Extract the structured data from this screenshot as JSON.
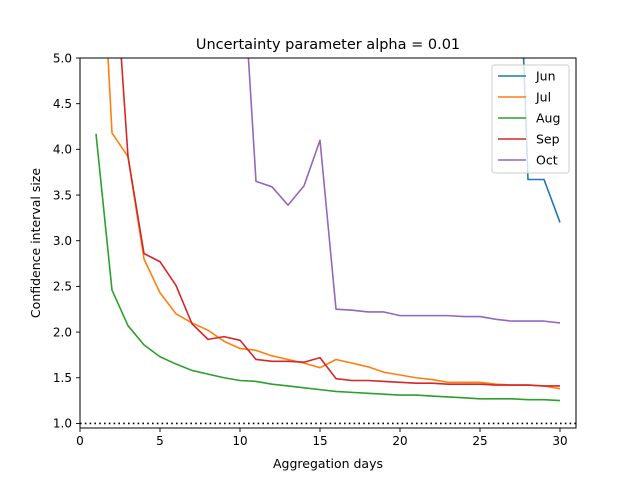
{
  "chart_data": {
    "type": "line",
    "title": "Uncertainty parameter alpha = 0.01",
    "xlabel": "Aggregation days",
    "ylabel": "Confidence interval size",
    "xlim": [
      0,
      31
    ],
    "ylim": [
      0.95,
      5.0
    ],
    "xticks": [
      0,
      5,
      10,
      15,
      20,
      25,
      30
    ],
    "yticks": [
      1.0,
      1.5,
      2.0,
      2.5,
      3.0,
      3.5,
      4.0,
      4.5,
      5.0
    ],
    "xtick_labels": [
      "0",
      "5",
      "10",
      "15",
      "20",
      "25",
      "30"
    ],
    "ytick_labels": [
      "1.0",
      "1.5",
      "2.0",
      "2.5",
      "3.0",
      "3.5",
      "4.0",
      "4.5",
      "5.0"
    ],
    "grid": false,
    "legend_position": "top-right",
    "reference_line": {
      "y": 1.0,
      "style": "dotted",
      "color": "#000000"
    },
    "series": [
      {
        "name": "Jun",
        "color": "#1f77b4",
        "x": [
          27,
          28,
          29,
          30
        ],
        "y": [
          8.5,
          3.67,
          3.67,
          3.2
        ]
      },
      {
        "name": "Jul",
        "color": "#ff7f0e",
        "x": [
          1,
          2,
          3,
          4,
          5,
          6,
          7,
          8,
          9,
          10,
          11,
          12,
          13,
          14,
          15,
          16,
          17,
          18,
          19,
          20,
          21,
          22,
          23,
          24,
          25,
          26,
          27,
          28,
          29,
          30
        ],
        "y": [
          7.5,
          4.18,
          3.92,
          2.8,
          2.43,
          2.2,
          2.1,
          2.02,
          1.9,
          1.82,
          1.8,
          1.74,
          1.7,
          1.66,
          1.61,
          1.7,
          1.66,
          1.62,
          1.56,
          1.53,
          1.5,
          1.48,
          1.45,
          1.45,
          1.45,
          1.43,
          1.42,
          1.42,
          1.41,
          1.38
        ]
      },
      {
        "name": "Aug",
        "color": "#2ca02c",
        "x": [
          1,
          2,
          3,
          4,
          5,
          6,
          7,
          8,
          9,
          10,
          11,
          12,
          13,
          14,
          15,
          16,
          17,
          18,
          19,
          20,
          21,
          22,
          23,
          24,
          25,
          26,
          27,
          28,
          29,
          30
        ],
        "y": [
          4.17,
          2.46,
          2.07,
          1.86,
          1.73,
          1.65,
          1.58,
          1.54,
          1.5,
          1.47,
          1.46,
          1.43,
          1.41,
          1.39,
          1.37,
          1.35,
          1.34,
          1.33,
          1.32,
          1.31,
          1.31,
          1.3,
          1.29,
          1.28,
          1.27,
          1.27,
          1.27,
          1.26,
          1.26,
          1.25
        ]
      },
      {
        "name": "Sep",
        "color": "#d62728",
        "x": [
          2,
          3,
          4,
          5,
          6,
          7,
          8,
          9,
          10,
          11,
          12,
          13,
          14,
          15,
          16,
          17,
          18,
          19,
          20,
          21,
          22,
          23,
          24,
          25,
          26,
          27,
          28,
          29,
          30
        ],
        "y": [
          6.5,
          3.92,
          2.86,
          2.77,
          2.51,
          2.09,
          1.92,
          1.95,
          1.91,
          1.7,
          1.68,
          1.68,
          1.67,
          1.72,
          1.49,
          1.47,
          1.47,
          1.46,
          1.45,
          1.44,
          1.44,
          1.43,
          1.43,
          1.43,
          1.42,
          1.42,
          1.42,
          1.41,
          1.41
        ]
      },
      {
        "name": "Oct",
        "color": "#9467bd",
        "x": [
          10,
          11,
          12,
          13,
          14,
          15,
          16,
          17,
          18,
          19,
          20,
          21,
          22,
          23,
          24,
          25,
          26,
          27,
          28,
          29,
          30
        ],
        "y": [
          6.5,
          3.65,
          3.59,
          3.39,
          3.6,
          4.1,
          2.25,
          2.24,
          2.22,
          2.22,
          2.18,
          2.18,
          2.18,
          2.18,
          2.17,
          2.17,
          2.14,
          2.12,
          2.12,
          2.12,
          2.1
        ]
      }
    ]
  }
}
